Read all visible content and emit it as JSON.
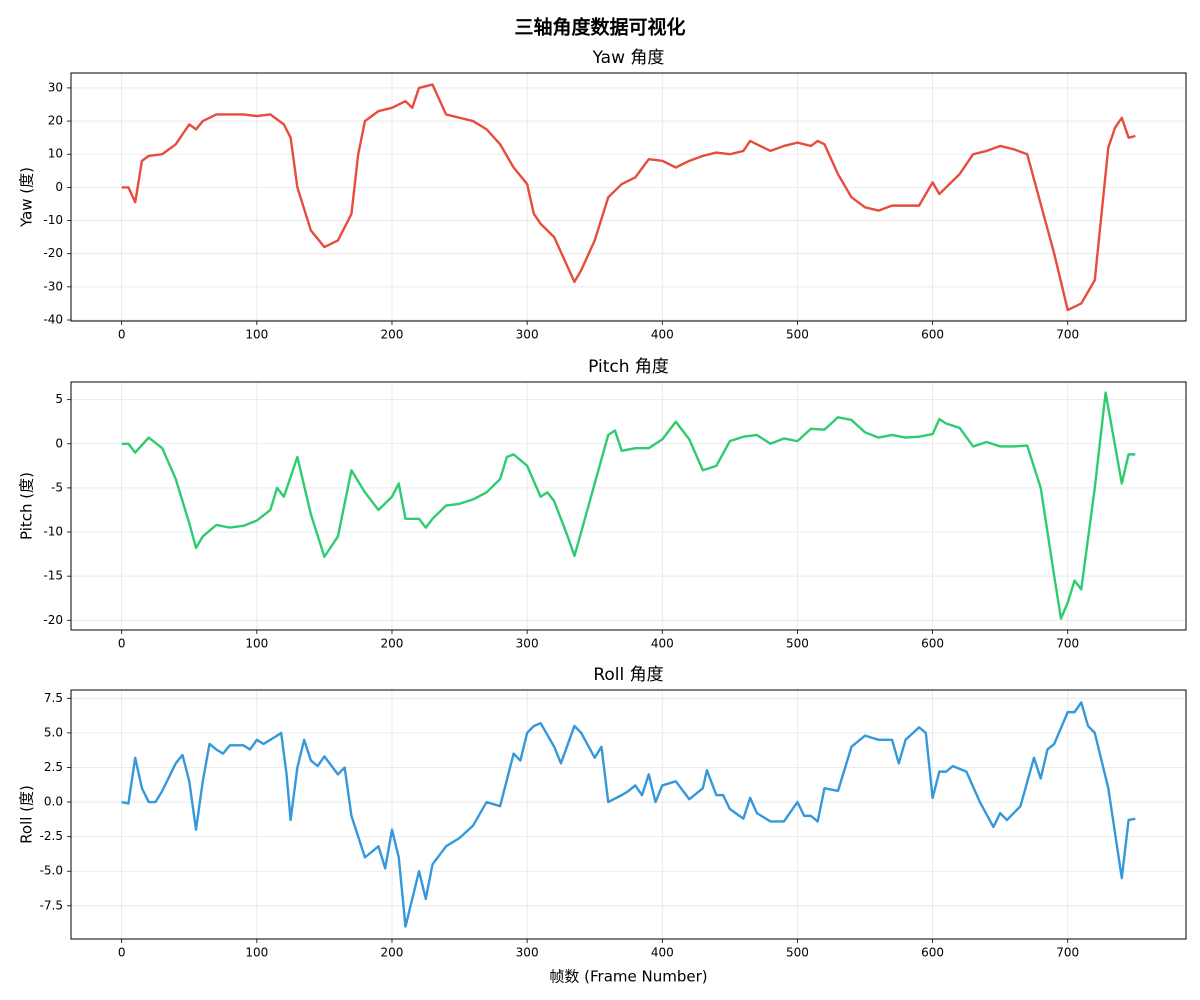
{
  "title": "三轴角度数据可视化",
  "chart_data": [
    {
      "type": "line",
      "title": "Yaw 角度",
      "ylabel": "Yaw (度)",
      "color": "#e74c3c",
      "grid": true,
      "xlim": [
        -37.5,
        787.5
      ],
      "xticks": [
        0,
        100,
        200,
        300,
        400,
        500,
        600,
        700
      ],
      "ylim": [
        -40.3,
        34.5
      ],
      "yticks": [
        -40,
        -30,
        -20,
        -10,
        0,
        10,
        20,
        30
      ],
      "x": [
        0,
        5,
        10,
        15,
        20,
        30,
        40,
        50,
        55,
        60,
        70,
        80,
        90,
        100,
        110,
        120,
        125,
        130,
        140,
        150,
        160,
        170,
        175,
        180,
        190,
        200,
        210,
        215,
        220,
        230,
        240,
        250,
        260,
        270,
        280,
        290,
        300,
        305,
        310,
        320,
        330,
        335,
        340,
        350,
        360,
        370,
        380,
        390,
        400,
        410,
        420,
        430,
        440,
        450,
        460,
        465,
        470,
        480,
        490,
        500,
        510,
        515,
        520,
        530,
        540,
        550,
        560,
        570,
        580,
        590,
        600,
        605,
        610,
        620,
        630,
        640,
        650,
        660,
        670,
        680,
        690,
        700,
        710,
        720,
        730,
        735,
        740,
        745,
        750
      ],
      "values": [
        0,
        0,
        -4.5,
        8,
        9.5,
        10,
        13,
        19,
        17.5,
        20,
        22,
        22,
        22,
        21.5,
        22,
        19,
        15,
        0,
        -13,
        -18,
        -16,
        -8,
        10,
        20,
        23,
        24,
        26,
        24,
        30,
        31,
        22,
        21,
        20,
        17.5,
        13,
        6,
        1,
        -8,
        -11,
        -15,
        -24,
        -28.5,
        -25,
        -16,
        -3,
        1,
        3,
        8.5,
        8,
        6,
        8,
        9.5,
        10.5,
        10,
        11,
        14,
        13,
        11,
        12.5,
        13.5,
        12.5,
        14,
        13,
        4,
        -3,
        -6,
        -7,
        -5.5,
        -5.5,
        -5.5,
        1.5,
        -2,
        0,
        4,
        10,
        11,
        12.5,
        11.5,
        10,
        -5,
        -20,
        -37,
        -35,
        -28,
        12,
        18,
        21,
        15,
        15.5
      ]
    },
    {
      "type": "line",
      "title": "Pitch 角度",
      "ylabel": "Pitch (度)",
      "color": "#2ecc71",
      "grid": true,
      "xlim": [
        -37.5,
        787.5
      ],
      "xticks": [
        0,
        100,
        200,
        300,
        400,
        500,
        600,
        700
      ],
      "ylim": [
        -21.1,
        7.0
      ],
      "yticks": [
        -20,
        -15,
        -10,
        -5,
        0,
        5
      ],
      "x": [
        0,
        5,
        10,
        20,
        30,
        40,
        50,
        55,
        60,
        70,
        80,
        90,
        100,
        110,
        115,
        120,
        130,
        140,
        150,
        160,
        170,
        180,
        190,
        200,
        205,
        210,
        220,
        225,
        230,
        240,
        250,
        260,
        270,
        280,
        285,
        290,
        300,
        310,
        315,
        320,
        330,
        335,
        340,
        350,
        360,
        365,
        370,
        380,
        390,
        400,
        410,
        420,
        430,
        440,
        450,
        460,
        470,
        480,
        490,
        500,
        510,
        520,
        530,
        540,
        550,
        560,
        570,
        580,
        590,
        600,
        605,
        610,
        620,
        630,
        640,
        650,
        660,
        670,
        680,
        690,
        695,
        700,
        705,
        710,
        720,
        728,
        740,
        745,
        750
      ],
      "values": [
        0,
        0,
        -1,
        0.7,
        -0.5,
        -4,
        -9,
        -11.8,
        -10.5,
        -9.2,
        -9.5,
        -9.3,
        -8.7,
        -7.5,
        -5,
        -6,
        -1.5,
        -8,
        -12.8,
        -10.5,
        -3,
        -5.5,
        -7.5,
        -6,
        -4.5,
        -8.5,
        -8.5,
        -9.5,
        -8.5,
        -7,
        -6.8,
        -6.3,
        -5.5,
        -4,
        -1.5,
        -1.2,
        -2.5,
        -6,
        -5.5,
        -6.5,
        -10.5,
        -12.7,
        -10,
        -4.5,
        1,
        1.5,
        -0.8,
        -0.5,
        -0.5,
        0.5,
        2.5,
        0.5,
        -3,
        -2.5,
        0.3,
        0.8,
        1,
        0,
        0.6,
        0.3,
        1.7,
        1.6,
        3,
        2.7,
        1.3,
        0.7,
        1,
        0.7,
        0.8,
        1.1,
        2.8,
        2.3,
        1.8,
        -0.3,
        0.2,
        -0.3,
        -0.3,
        -0.2,
        -5,
        -15,
        -19.8,
        -18,
        -15.5,
        -16.5,
        -5,
        5.8,
        -4.5,
        -1.2,
        -1.2
      ]
    },
    {
      "type": "line",
      "title": "Roll 角度",
      "ylabel": "Roll (度)",
      "xlabel": "帧数 (Frame Number)",
      "color": "#3498db",
      "grid": true,
      "xlim": [
        -37.5,
        787.5
      ],
      "xticks": [
        0,
        100,
        200,
        300,
        400,
        500,
        600,
        700
      ],
      "ylim": [
        -9.9,
        8.1
      ],
      "yticks": [
        {
          "value": -7.5,
          "label": "-7.5"
        },
        {
          "value": -5,
          "label": "-5.0"
        },
        {
          "value": -2.5,
          "label": "-2.5"
        },
        {
          "value": 0,
          "label": "0.0"
        },
        {
          "value": 2.5,
          "label": "2.5"
        },
        {
          "value": 5,
          "label": "5.0"
        },
        {
          "value": 7.5,
          "label": "7.5"
        }
      ],
      "x": [
        0,
        5,
        10,
        15,
        20,
        25,
        30,
        40,
        45,
        50,
        55,
        60,
        65,
        70,
        75,
        80,
        90,
        95,
        100,
        105,
        115,
        118,
        122,
        125,
        130,
        135,
        140,
        145,
        150,
        160,
        165,
        170,
        180,
        190,
        195,
        200,
        205,
        210,
        215,
        220,
        225,
        230,
        240,
        250,
        260,
        270,
        280,
        290,
        295,
        300,
        305,
        310,
        320,
        325,
        335,
        340,
        350,
        355,
        360,
        370,
        375,
        380,
        385,
        390,
        395,
        400,
        410,
        420,
        430,
        433,
        440,
        445,
        450,
        460,
        465,
        470,
        480,
        490,
        500,
        505,
        510,
        515,
        520,
        530,
        540,
        550,
        560,
        570,
        575,
        580,
        590,
        595,
        600,
        605,
        610,
        615,
        625,
        635,
        645,
        650,
        655,
        665,
        675,
        680,
        685,
        690,
        700,
        705,
        710,
        715,
        720,
        730,
        740,
        745,
        750
      ],
      "values": [
        0,
        -0.1,
        3.2,
        1,
        0,
        0,
        0.8,
        2.8,
        3.4,
        1.5,
        -2,
        1.5,
        4.2,
        3.8,
        3.5,
        4.1,
        4.1,
        3.8,
        4.5,
        4.2,
        4.8,
        5,
        2,
        -1.3,
        2.5,
        4.5,
        3,
        2.6,
        3.3,
        2,
        2.5,
        -1,
        -4,
        -3.2,
        -4.8,
        -2,
        -4,
        -9,
        -7,
        -5,
        -7,
        -4.5,
        -3.2,
        -2.6,
        -1.7,
        0,
        -0.3,
        3.5,
        3,
        5,
        5.5,
        5.7,
        4,
        2.8,
        5.5,
        5,
        3.2,
        4,
        0,
        0.5,
        0.8,
        1.2,
        0.5,
        2,
        0,
        1.2,
        1.5,
        0.2,
        1,
        2.3,
        0.5,
        0.5,
        -0.5,
        -1.2,
        0.3,
        -0.8,
        -1.4,
        -1.4,
        0,
        -1,
        -1,
        -1.4,
        1,
        0.8,
        4,
        4.8,
        4.5,
        4.5,
        2.8,
        4.5,
        5.4,
        5,
        0.3,
        2.2,
        2.2,
        2.6,
        2.2,
        0,
        -1.8,
        -0.8,
        -1.3,
        -0.3,
        3.2,
        1.7,
        3.8,
        4.2,
        6.5,
        6.5,
        7.2,
        5.5,
        5,
        1,
        -5.5,
        -1.3,
        -1.2
      ]
    }
  ]
}
